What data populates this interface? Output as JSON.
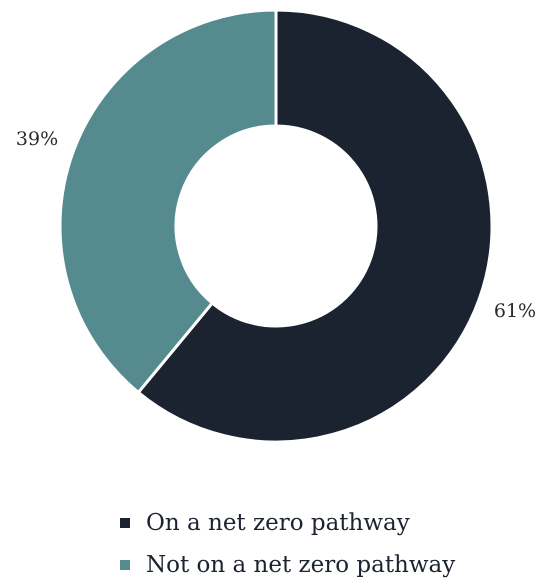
{
  "chart_data": {
    "type": "pie",
    "variant": "donut",
    "title": "",
    "categories": [
      "On a net zero pathway",
      "Not on a net zero pathway"
    ],
    "values": [
      61,
      39
    ],
    "data_labels": [
      "61%",
      "39%"
    ],
    "colors": [
      "#1c2330",
      "#558a8e"
    ],
    "legend": {
      "position": "bottom",
      "items": [
        "On a net zero pathway",
        "Not on a net zero pathway"
      ]
    }
  }
}
